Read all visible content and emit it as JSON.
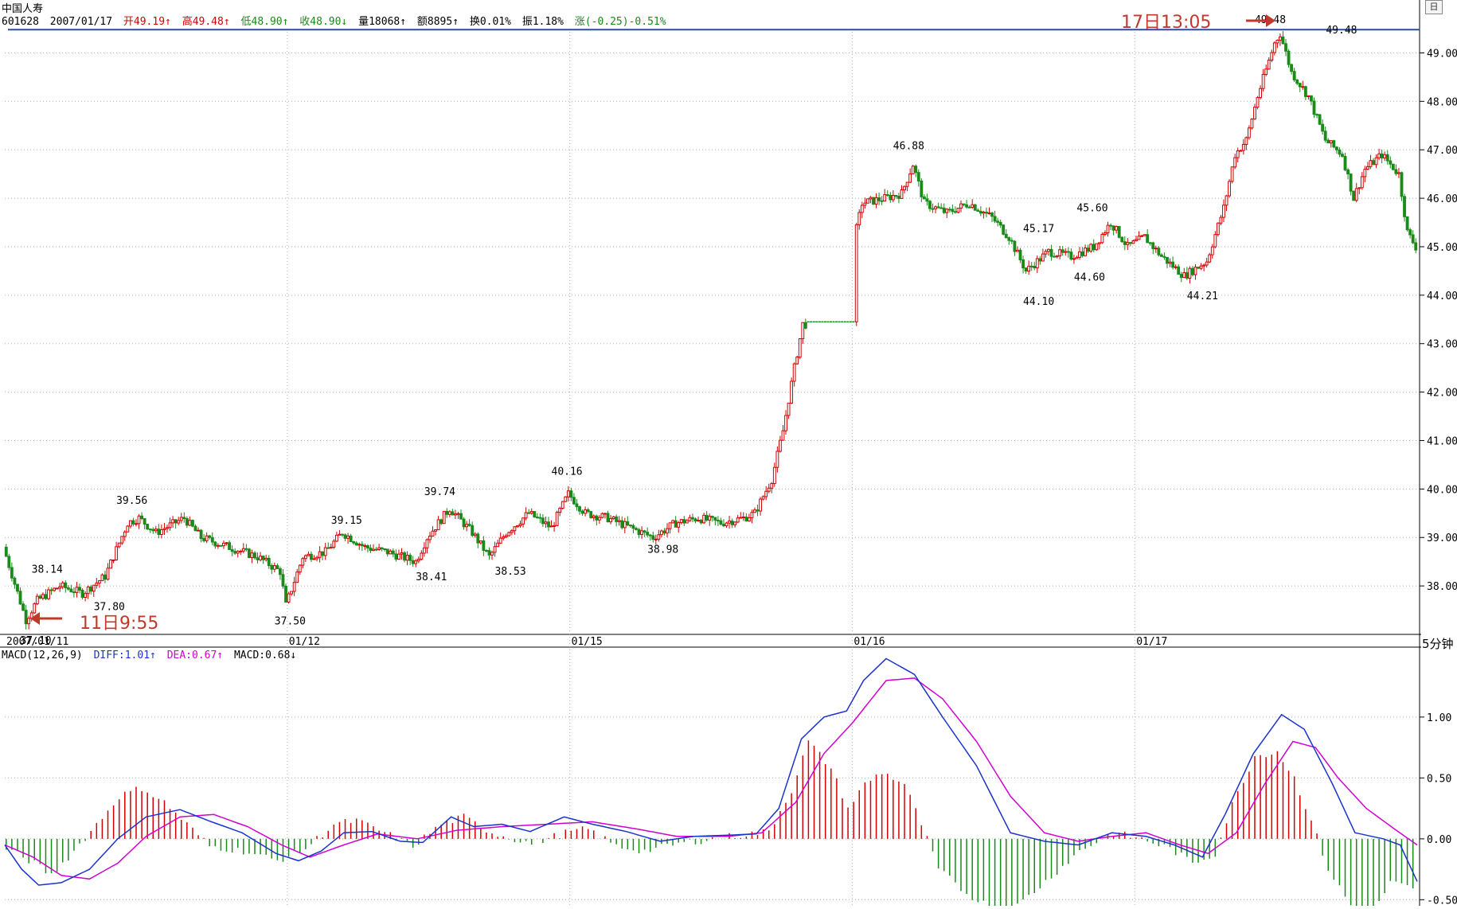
{
  "header": {
    "name": "中国人寿",
    "code": "601628",
    "date": "2007/01/17",
    "open": "开49.19↑",
    "high": "高49.48↑",
    "low": "低48.90↑",
    "close": "收48.90↓",
    "volume": "量18068↑",
    "amount": "额8895↑",
    "turnover": "换0.01%",
    "amplitude": "振1.18%",
    "change": "涨(-0.25)-0.51%"
  },
  "macd_header": {
    "label": "MACD(12,26,9)",
    "diff": "DIFF:1.01↑",
    "dea": "DEA:0.67↑",
    "macd": "MACD:0.68↓"
  },
  "period_label": "5分钟",
  "corner_button": "日",
  "annotations": {
    "top": "17日13:05",
    "bottom": "11日9:55"
  },
  "colors": {
    "up": "#d40000",
    "down": "#1a8a1a",
    "diff": "#1a33cc",
    "dea": "#d000d0",
    "highline": "#2c4aa8",
    "grid": "#b0b0b0",
    "arrow": "#c0392b"
  },
  "chart_data": [
    {
      "type": "candlestick",
      "ylim": [
        37.0,
        49.5
      ],
      "yticks": [
        "49.00",
        "48.00",
        "47.00",
        "46.00",
        "45.00",
        "44.00",
        "43.00",
        "42.00",
        "41.00",
        "40.00",
        "39.00",
        "38.00"
      ],
      "ytick_values": [
        49,
        48,
        47,
        46,
        45,
        44,
        43,
        42,
        41,
        40,
        39,
        38
      ],
      "date_labels": [
        "2007/01/11",
        "01/12",
        "01/15",
        "01/16",
        "01/17"
      ],
      "date_positions": [
        0,
        100,
        200,
        300,
        400
      ],
      "bars_total": 500,
      "high_line_value": 49.48,
      "price_path": [
        [
          0,
          38.8
        ],
        [
          8,
          37.3
        ],
        [
          12,
          37.7
        ],
        [
          20,
          38.0
        ],
        [
          28,
          37.85
        ],
        [
          36,
          38.2
        ],
        [
          44,
          39.3
        ],
        [
          48,
          39.4
        ],
        [
          54,
          39.1
        ],
        [
          64,
          39.4
        ],
        [
          70,
          39.0
        ],
        [
          80,
          38.8
        ],
        [
          90,
          38.6
        ],
        [
          98,
          38.3
        ],
        [
          100,
          37.6
        ],
        [
          106,
          38.6
        ],
        [
          114,
          38.7
        ],
        [
          120,
          39.1
        ],
        [
          128,
          38.8
        ],
        [
          136,
          38.7
        ],
        [
          146,
          38.5
        ],
        [
          150,
          39.0
        ],
        [
          158,
          39.6
        ],
        [
          166,
          39.1
        ],
        [
          172,
          38.6
        ],
        [
          178,
          39.1
        ],
        [
          186,
          39.5
        ],
        [
          194,
          39.2
        ],
        [
          200,
          39.9
        ],
        [
          206,
          39.5
        ],
        [
          214,
          39.4
        ],
        [
          222,
          39.2
        ],
        [
          230,
          39.0
        ],
        [
          238,
          39.3
        ],
        [
          246,
          39.4
        ],
        [
          254,
          39.3
        ],
        [
          262,
          39.4
        ],
        [
          266,
          39.5
        ],
        [
          272,
          40.2
        ],
        [
          276,
          41.2
        ],
        [
          280,
          42.5
        ],
        [
          283,
          43.4
        ],
        [
          300,
          43.4
        ],
        [
          301,
          45.1
        ],
        [
          304,
          45.9
        ],
        [
          312,
          46.0
        ],
        [
          318,
          46.1
        ],
        [
          322,
          46.7
        ],
        [
          326,
          45.9
        ],
        [
          334,
          45.7
        ],
        [
          342,
          45.9
        ],
        [
          350,
          45.6
        ],
        [
          356,
          45.2
        ],
        [
          362,
          44.5
        ],
        [
          370,
          44.9
        ],
        [
          378,
          44.8
        ],
        [
          386,
          45.0
        ],
        [
          392,
          45.5
        ],
        [
          398,
          45.0
        ],
        [
          404,
          45.2
        ],
        [
          410,
          44.8
        ],
        [
          418,
          44.4
        ],
        [
          426,
          44.7
        ],
        [
          432,
          45.8
        ],
        [
          436,
          46.9
        ],
        [
          440,
          47.2
        ],
        [
          444,
          48.1
        ],
        [
          450,
          49.2
        ],
        [
          452,
          49.4
        ],
        [
          456,
          48.6
        ],
        [
          462,
          48.1
        ],
        [
          468,
          47.2
        ],
        [
          474,
          46.9
        ],
        [
          478,
          46.0
        ],
        [
          482,
          46.6
        ],
        [
          488,
          46.9
        ],
        [
          494,
          46.5
        ],
        [
          497,
          45.3
        ],
        [
          500,
          45.0
        ]
      ],
      "labels": [
        {
          "bar": 14,
          "value": 38.14,
          "text": "38.14",
          "pos": "above"
        },
        {
          "bar": 10,
          "value": 37.1,
          "text": "37.10",
          "pos": "below"
        },
        {
          "bar": 36,
          "value": 37.8,
          "text": "37.80",
          "pos": "below"
        },
        {
          "bar": 44,
          "value": 39.56,
          "text": "39.56",
          "pos": "above"
        },
        {
          "bar": 100,
          "value": 37.5,
          "text": "37.50",
          "pos": "below"
        },
        {
          "bar": 120,
          "value": 39.15,
          "text": "39.15",
          "pos": "above"
        },
        {
          "bar": 150,
          "value": 38.41,
          "text": "38.41",
          "pos": "below"
        },
        {
          "bar": 153,
          "value": 39.74,
          "text": "39.74",
          "pos": "above"
        },
        {
          "bar": 178,
          "value": 38.53,
          "text": "38.53",
          "pos": "below"
        },
        {
          "bar": 198,
          "value": 40.16,
          "text": "40.16",
          "pos": "above"
        },
        {
          "bar": 232,
          "value": 38.98,
          "text": "38.98",
          "pos": "below"
        },
        {
          "bar": 319,
          "value": 46.88,
          "text": "46.88",
          "pos": "above"
        },
        {
          "bar": 365,
          "value": 45.17,
          "text": "45.17",
          "pos": "above"
        },
        {
          "bar": 365,
          "value": 44.1,
          "text": "44.10",
          "pos": "below"
        },
        {
          "bar": 384,
          "value": 45.6,
          "text": "45.60",
          "pos": "above"
        },
        {
          "bar": 383,
          "value": 44.6,
          "text": "44.60",
          "pos": "below"
        },
        {
          "bar": 423,
          "value": 44.21,
          "text": "44.21",
          "pos": "below"
        },
        {
          "bar": 447,
          "value": 49.48,
          "text": "49.48",
          "pos": "above"
        },
        {
          "bar": 466,
          "value": 49.48,
          "text": "49.48",
          "pos": "right"
        }
      ]
    },
    {
      "type": "macd",
      "ylim": [
        -0.55,
        1.45
      ],
      "yticks": [
        "1.00",
        "0.50",
        "0.00",
        "-0.50"
      ],
      "ytick_values": [
        1.0,
        0.5,
        0.0,
        -0.5
      ],
      "diff_path": [
        [
          0,
          -0.05
        ],
        [
          6,
          -0.25
        ],
        [
          12,
          -0.38
        ],
        [
          20,
          -0.36
        ],
        [
          30,
          -0.25
        ],
        [
          40,
          0.0
        ],
        [
          50,
          0.18
        ],
        [
          62,
          0.24
        ],
        [
          72,
          0.15
        ],
        [
          84,
          0.05
        ],
        [
          96,
          -0.12
        ],
        [
          104,
          -0.18
        ],
        [
          112,
          -0.1
        ],
        [
          120,
          0.05
        ],
        [
          130,
          0.06
        ],
        [
          140,
          -0.02
        ],
        [
          148,
          -0.03
        ],
        [
          158,
          0.18
        ],
        [
          166,
          0.1
        ],
        [
          176,
          0.12
        ],
        [
          186,
          0.06
        ],
        [
          198,
          0.18
        ],
        [
          208,
          0.12
        ],
        [
          220,
          0.06
        ],
        [
          232,
          -0.02
        ],
        [
          244,
          0.02
        ],
        [
          256,
          0.03
        ],
        [
          266,
          0.04
        ],
        [
          274,
          0.25
        ],
        [
          282,
          0.82
        ],
        [
          290,
          1.0
        ],
        [
          298,
          1.05
        ],
        [
          304,
          1.3
        ],
        [
          312,
          1.48
        ],
        [
          322,
          1.35
        ],
        [
          332,
          1.0
        ],
        [
          344,
          0.6
        ],
        [
          356,
          0.05
        ],
        [
          368,
          -0.02
        ],
        [
          380,
          -0.05
        ],
        [
          392,
          0.05
        ],
        [
          404,
          0.02
        ],
        [
          414,
          -0.05
        ],
        [
          424,
          -0.15
        ],
        [
          432,
          0.2
        ],
        [
          442,
          0.7
        ],
        [
          452,
          1.02
        ],
        [
          460,
          0.9
        ],
        [
          470,
          0.45
        ],
        [
          478,
          0.05
        ],
        [
          488,
          0.0
        ],
        [
          494,
          -0.05
        ],
        [
          500,
          -0.35
        ]
      ],
      "dea_path": [
        [
          0,
          -0.05
        ],
        [
          10,
          -0.15
        ],
        [
          20,
          -0.3
        ],
        [
          30,
          -0.33
        ],
        [
          40,
          -0.2
        ],
        [
          50,
          0.02
        ],
        [
          62,
          0.18
        ],
        [
          74,
          0.2
        ],
        [
          86,
          0.1
        ],
        [
          98,
          -0.05
        ],
        [
          108,
          -0.15
        ],
        [
          120,
          -0.05
        ],
        [
          132,
          0.04
        ],
        [
          146,
          0.0
        ],
        [
          160,
          0.07
        ],
        [
          176,
          0.1
        ],
        [
          192,
          0.12
        ],
        [
          208,
          0.14
        ],
        [
          224,
          0.08
        ],
        [
          238,
          0.02
        ],
        [
          256,
          0.02
        ],
        [
          268,
          0.05
        ],
        [
          280,
          0.3
        ],
        [
          290,
          0.7
        ],
        [
          300,
          0.95
        ],
        [
          312,
          1.3
        ],
        [
          322,
          1.32
        ],
        [
          332,
          1.15
        ],
        [
          344,
          0.8
        ],
        [
          356,
          0.35
        ],
        [
          368,
          0.05
        ],
        [
          380,
          -0.02
        ],
        [
          392,
          0.02
        ],
        [
          404,
          0.05
        ],
        [
          416,
          -0.05
        ],
        [
          426,
          -0.12
        ],
        [
          436,
          0.05
        ],
        [
          446,
          0.45
        ],
        [
          456,
          0.8
        ],
        [
          464,
          0.75
        ],
        [
          472,
          0.5
        ],
        [
          482,
          0.25
        ],
        [
          492,
          0.08
        ],
        [
          500,
          -0.05
        ]
      ],
      "histogram_path": [
        [
          0,
          -0.08
        ],
        [
          10,
          -0.2
        ],
        [
          16,
          -0.3
        ],
        [
          24,
          -0.1
        ],
        [
          32,
          0.12
        ],
        [
          40,
          0.35
        ],
        [
          48,
          0.42
        ],
        [
          56,
          0.3
        ],
        [
          64,
          0.12
        ],
        [
          72,
          -0.06
        ],
        [
          84,
          -0.1
        ],
        [
          96,
          -0.18
        ],
        [
          106,
          -0.08
        ],
        [
          116,
          0.12
        ],
        [
          124,
          0.15
        ],
        [
          134,
          0.05
        ],
        [
          144,
          -0.06
        ],
        [
          154,
          0.12
        ],
        [
          162,
          0.18
        ],
        [
          172,
          0.05
        ],
        [
          186,
          -0.04
        ],
        [
          198,
          0.05
        ],
        [
          206,
          0.08
        ],
        [
          216,
          -0.06
        ],
        [
          226,
          -0.1
        ],
        [
          238,
          -0.04
        ],
        [
          256,
          0.02
        ],
        [
          270,
          0.06
        ],
        [
          278,
          0.4
        ],
        [
          284,
          0.8
        ],
        [
          292,
          0.58
        ],
        [
          298,
          0.25
        ],
        [
          304,
          0.45
        ],
        [
          310,
          0.55
        ],
        [
          318,
          0.45
        ],
        [
          324,
          0.12
        ],
        [
          330,
          -0.25
        ],
        [
          340,
          -0.45
        ],
        [
          350,
          -0.58
        ],
        [
          358,
          -0.55
        ],
        [
          368,
          -0.35
        ],
        [
          380,
          -0.1
        ],
        [
          392,
          0.05
        ],
        [
          402,
          0.0
        ],
        [
          412,
          -0.08
        ],
        [
          420,
          -0.2
        ],
        [
          428,
          -0.12
        ],
        [
          434,
          0.28
        ],
        [
          442,
          0.68
        ],
        [
          450,
          0.72
        ],
        [
          456,
          0.5
        ],
        [
          462,
          0.15
        ],
        [
          468,
          -0.25
        ],
        [
          476,
          -0.55
        ],
        [
          484,
          -0.62
        ],
        [
          490,
          -0.35
        ],
        [
          496,
          -0.4
        ],
        [
          500,
          -0.45
        ]
      ]
    }
  ]
}
